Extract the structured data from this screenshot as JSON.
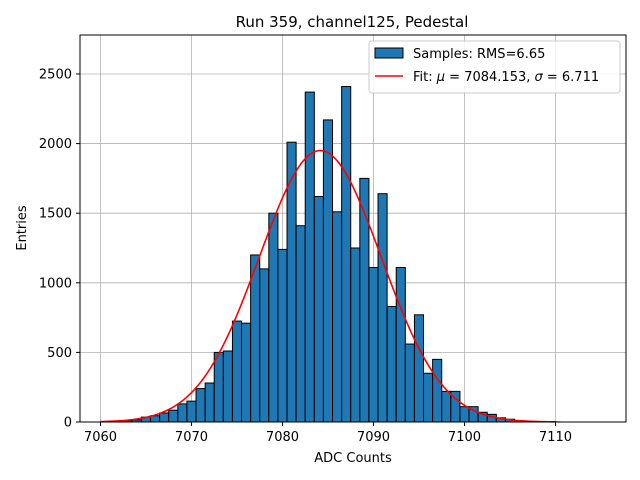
{
  "chart_data": {
    "type": "bar",
    "title": "Run 359, channel125, Pedestal",
    "xlabel": "ADC Counts",
    "ylabel": "Entries",
    "xlim": [
      7057.75,
      7117.75
    ],
    "ylim": [
      0,
      2780
    ],
    "xticks": [
      7060,
      7070,
      7080,
      7090,
      7100,
      7110
    ],
    "yticks": [
      0,
      500,
      1000,
      1500,
      2000,
      2500
    ],
    "grid": true,
    "legend_position": "top-right",
    "bin_width": 1,
    "bins": {
      "x": [
        7061,
        7062,
        7063,
        7064,
        7065,
        7066,
        7067,
        7068,
        7069,
        7070,
        7071,
        7072,
        7073,
        7074,
        7075,
        7076,
        7077,
        7078,
        7079,
        7080,
        7081,
        7082,
        7083,
        7084,
        7085,
        7086,
        7087,
        7088,
        7089,
        7090,
        7091,
        7092,
        7093,
        7094,
        7095,
        7096,
        7097,
        7098,
        7099,
        7100,
        7101,
        7102,
        7103,
        7104,
        7105,
        7106,
        7107,
        7108,
        7109,
        7110,
        7111,
        7112,
        7113,
        7114,
        7115
      ],
      "values": [
        3,
        5,
        8,
        15,
        35,
        45,
        65,
        85,
        130,
        150,
        240,
        280,
        500,
        510,
        725,
        710,
        1200,
        1100,
        1500,
        1240,
        2010,
        1410,
        2370,
        1620,
        2170,
        1510,
        2410,
        1250,
        1750,
        1110,
        1640,
        830,
        1110,
        560,
        770,
        350,
        450,
        220,
        220,
        110,
        110,
        70,
        55,
        30,
        20,
        10,
        5,
        3,
        2,
        1,
        0,
        0,
        0,
        0,
        0
      ],
      "color": "#1f77b4",
      "edgecolor": "#000000"
    },
    "series": [
      {
        "name": "Samples: RMS=6.65",
        "kind": "histogram"
      },
      {
        "name": "Fit: μ = 7084.153, σ = 6.711",
        "kind": "line",
        "mu": 7084.153,
        "sigma": 6.711,
        "amplitude": 1950,
        "x_range": [
          7060,
          7110
        ],
        "color": "#ff0000"
      }
    ],
    "legend": {
      "entries": [
        {
          "label": "Samples: RMS=6.65",
          "marker": "patch",
          "color": "#1f77b4"
        },
        {
          "label_prefix": "Fit: ",
          "label_mu": "μ",
          "label_mid": " = 7084.153, ",
          "label_sigma": "σ",
          "label_end": " = 6.711",
          "marker": "line",
          "color": "#ff0000"
        }
      ]
    }
  }
}
